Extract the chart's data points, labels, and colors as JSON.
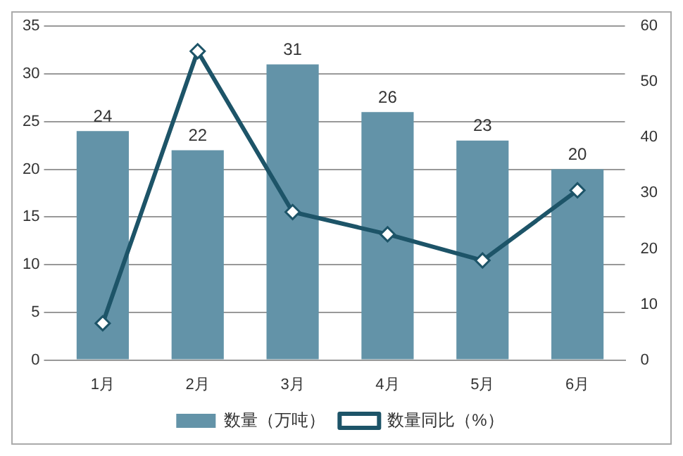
{
  "chart_data": {
    "type": "bar",
    "categories": [
      "1月",
      "2月",
      "3月",
      "4月",
      "5月",
      "6月"
    ],
    "series": [
      {
        "name": "数量（万吨）",
        "color": "#6393a8",
        "values": [
          24,
          22,
          31,
          26,
          23,
          20
        ],
        "value_labels": [
          "24",
          "22",
          "31",
          "26",
          "23",
          "20"
        ]
      },
      {
        "name": "数量同比（%）",
        "type": "line",
        "axis": "y2",
        "color": "#1d5468",
        "values": [
          6.6,
          55.5,
          26.6,
          22.6,
          17.9,
          30.5
        ],
        "marker": "diamond"
      }
    ],
    "ylim": [
      0,
      35
    ],
    "yticks": [
      0,
      5,
      10,
      15,
      20,
      25,
      30,
      35
    ],
    "y2lim": [
      0,
      60
    ],
    "y2ticks": [
      0,
      10,
      20,
      30,
      40,
      50,
      60
    ],
    "grid": "y",
    "legend": "bottom"
  }
}
